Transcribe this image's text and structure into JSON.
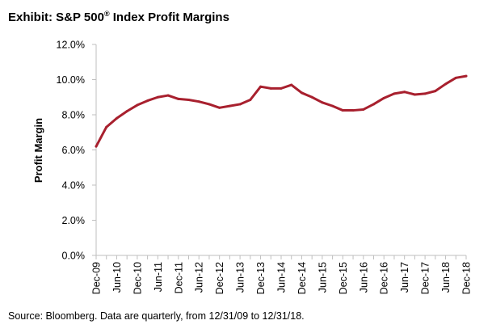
{
  "title_prefix": "Exhibit: S&P 500",
  "title_symbol": "®",
  "title_suffix": " Index Profit Margins",
  "source": "Source: Bloomberg. Data are quarterly, from 12/31/09 to 12/31/18.",
  "colors": {
    "line": "#a8202e",
    "axis": "#bfbfbf"
  },
  "chart_data": {
    "type": "line",
    "title": "Exhibit: S&P 500® Index Profit Margins",
    "xlabel": "",
    "ylabel": "Profit Margin",
    "ylim": [
      0,
      12
    ],
    "y_ticks": [
      "0.0%",
      "2.0%",
      "4.0%",
      "6.0%",
      "8.0%",
      "10.0%",
      "12.0%"
    ],
    "x_tick_labels": [
      "Dec-09",
      "Jun-10",
      "Dec-10",
      "Jun-11",
      "Dec-11",
      "Jun-12",
      "Dec-12",
      "Jun-13",
      "Dec-13",
      "Jun-14",
      "Dec-14",
      "Jun-15",
      "Dec-15",
      "Jun-16",
      "Dec-16",
      "Jun-17",
      "Dec-17",
      "Jun-18",
      "Dec-18"
    ],
    "grid": false,
    "legend": "none",
    "series": [
      {
        "x": [
          "12/31/09",
          "3/31/10",
          "6/30/10",
          "9/30/10",
          "12/31/10",
          "3/31/11",
          "6/30/11",
          "9/30/11",
          "12/31/11",
          "3/31/12",
          "6/30/12",
          "9/30/12",
          "12/31/12",
          "3/31/13",
          "6/30/13",
          "9/30/13",
          "12/31/13",
          "3/31/14",
          "6/30/14",
          "9/30/14",
          "12/31/14",
          "3/31/15",
          "6/30/15",
          "9/30/15",
          "12/31/15",
          "3/31/16",
          "6/30/16",
          "9/30/16",
          "12/31/16",
          "3/31/17",
          "6/30/17",
          "9/30/17",
          "12/31/17",
          "3/31/18",
          "6/30/18",
          "9/30/18",
          "12/31/18"
        ],
        "values": [
          6.2,
          7.3,
          7.8,
          8.2,
          8.55,
          8.8,
          9.0,
          9.1,
          8.9,
          8.85,
          8.75,
          8.6,
          8.4,
          8.5,
          8.6,
          8.85,
          9.6,
          9.5,
          9.5,
          9.7,
          9.25,
          9.0,
          8.7,
          8.5,
          8.25,
          8.25,
          8.3,
          8.6,
          8.95,
          9.2,
          9.3,
          9.15,
          9.2,
          9.35,
          9.75,
          10.1,
          10.2
        ]
      }
    ]
  }
}
